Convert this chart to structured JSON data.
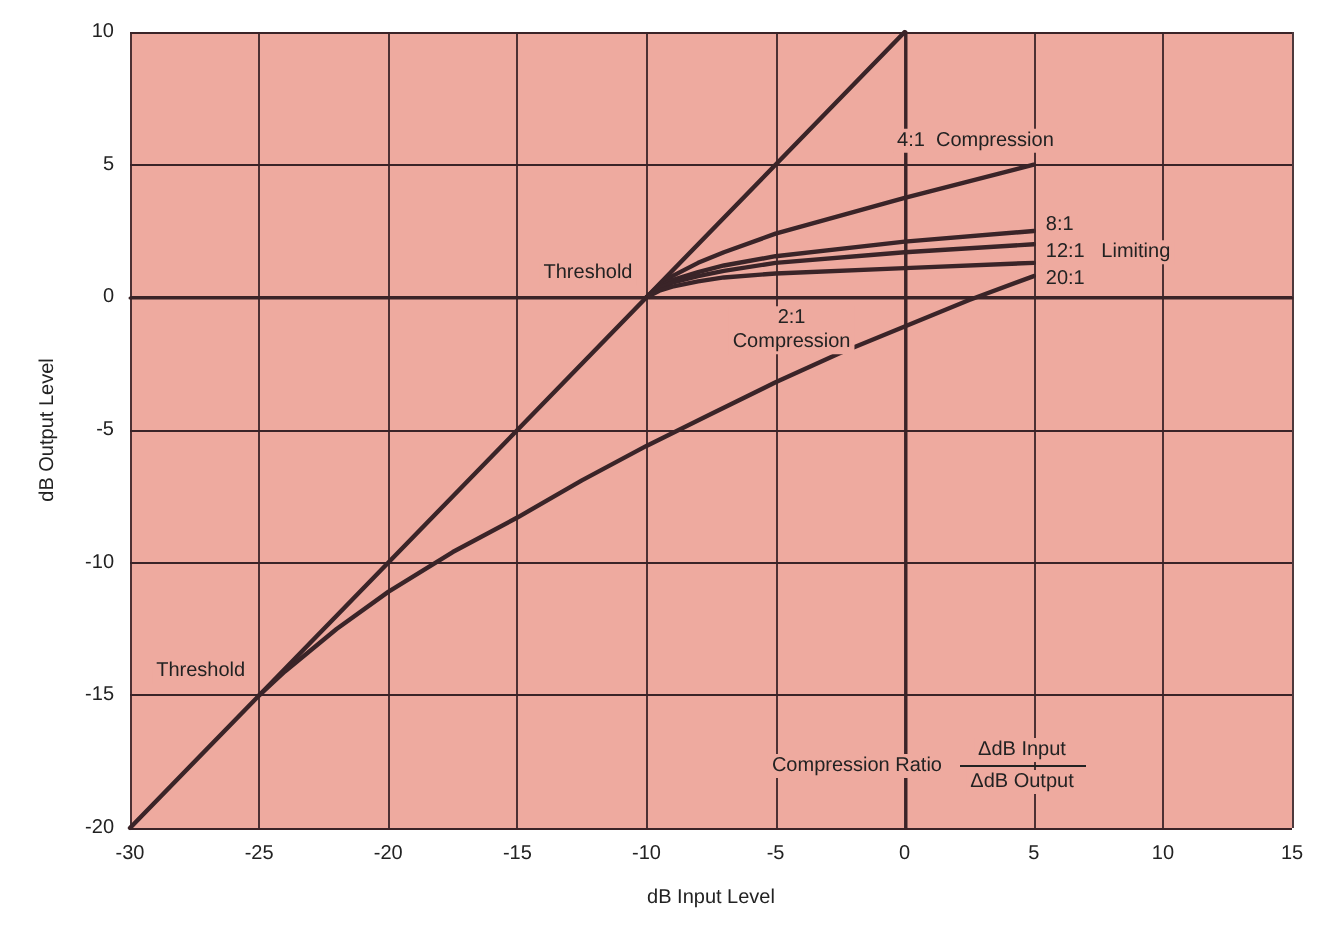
{
  "chart_data": {
    "type": "line",
    "xlabel": "dB Input Level",
    "ylabel": "dB Output Level",
    "xlim": [
      -30,
      15
    ],
    "xticks": [
      -30,
      -25,
      -20,
      -15,
      -10,
      -5,
      0,
      5,
      10,
      15
    ],
    "ylim": [
      -20,
      10
    ],
    "yticks": [
      -20,
      -15,
      -10,
      -5,
      0,
      5,
      10
    ],
    "grid": true,
    "marker": "none",
    "line_style": "solid",
    "series": [
      {
        "color": "#3a2428",
        "x": [
          -30,
          0
        ],
        "values": [
          -20,
          10
        ]
      },
      {
        "color": "#3a2428",
        "x": [
          -10,
          -9.5,
          -9,
          -8,
          -7,
          -5,
          0,
          5
        ],
        "values": [
          0,
          0.45,
          0.8,
          1.3,
          1.7,
          2.4,
          3.75,
          5
        ]
      },
      {
        "color": "#3a2428",
        "x": [
          -10,
          -9.5,
          -9,
          -8,
          -7,
          -5,
          0,
          5
        ],
        "values": [
          0,
          0.4,
          0.65,
          0.95,
          1.2,
          1.55,
          2.1,
          2.5
        ]
      },
      {
        "color": "#3a2428",
        "x": [
          -10,
          -9.5,
          -9,
          -8,
          -7,
          -5,
          0,
          5
        ],
        "values": [
          0,
          0.35,
          0.55,
          0.8,
          1.0,
          1.3,
          1.7,
          2.0
        ]
      },
      {
        "color": "#3a2428",
        "x": [
          -10,
          -9.5,
          -9,
          -8,
          -7,
          -5,
          0,
          5
        ],
        "values": [
          0,
          0.25,
          0.4,
          0.6,
          0.75,
          0.9,
          1.1,
          1.3
        ]
      },
      {
        "color": "#3a2428",
        "x": [
          -25,
          -24,
          -23,
          -22,
          -20,
          -17.5,
          -15,
          -12.5,
          -10,
          -7.5,
          -5,
          -2.5,
          0,
          2.5,
          5
        ],
        "values": [
          -15,
          -14.1,
          -13.3,
          -12.5,
          -11.1,
          -9.6,
          -8.3,
          -6.9,
          -5.6,
          -4.4,
          -3.2,
          -2.1,
          -1.1,
          -0.1,
          0.8
        ]
      }
    ],
    "annotations": [
      {
        "text": "Threshold",
        "x": -10,
        "y": 0
      },
      {
        "text": "Threshold",
        "x": -25,
        "y": -15
      },
      {
        "text": "4:1  Compression",
        "x": 5,
        "y": 5
      },
      {
        "text": "8:1",
        "x": 5,
        "y": 2.5
      },
      {
        "text": "12:1   Limiting",
        "x": 5,
        "y": 2.0
      },
      {
        "text": "20:1",
        "x": 5,
        "y": 1.3
      },
      {
        "text": "2:1\nCompression",
        "x": -5,
        "y": -3.2
      },
      "Compression Ratio",
      "ΔdB Input",
      "ΔdB Output"
    ]
  }
}
